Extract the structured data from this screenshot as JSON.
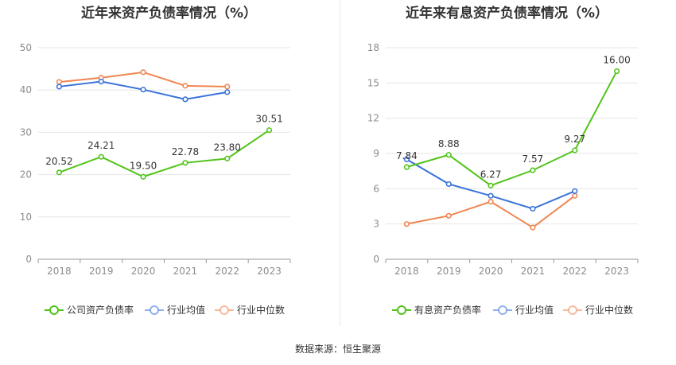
{
  "source_prefix": "数据来源：",
  "source_name": "恒生聚源",
  "colors": {
    "company": "#52c41a",
    "avg": "#3a73d9",
    "median": "#f08552"
  },
  "chart_data": [
    {
      "type": "line",
      "title": "近年来资产负债率情况（%）",
      "categories": [
        "2018",
        "2019",
        "2020",
        "2021",
        "2022",
        "2023"
      ],
      "ylim": [
        0,
        50
      ],
      "yticks": [
        0,
        10,
        20,
        30,
        40,
        50
      ],
      "grid": true,
      "legend_position": "bottom",
      "series": [
        {
          "name": "公司资产负债率",
          "color": "#52c41a",
          "values": [
            20.52,
            24.21,
            19.5,
            22.78,
            23.8,
            30.51
          ],
          "labels": [
            "20.52",
            "24.21",
            "19.50",
            "22.78",
            "23.80",
            "30.51"
          ]
        },
        {
          "name": "行业均值",
          "color": "#3a73d9",
          "values": [
            40.8,
            42.0,
            40.1,
            37.8,
            39.5,
            null
          ]
        },
        {
          "name": "行业中位数",
          "color": "#f08552",
          "values": [
            41.9,
            42.9,
            44.2,
            41.0,
            40.8,
            null
          ]
        }
      ]
    },
    {
      "type": "line",
      "title": "近年来有息资产负债率情况（%）",
      "categories": [
        "2018",
        "2019",
        "2020",
        "2021",
        "2022",
        "2023"
      ],
      "ylim": [
        0,
        18
      ],
      "yticks": [
        0,
        3,
        6,
        9,
        12,
        15,
        18
      ],
      "grid": true,
      "legend_position": "bottom",
      "series": [
        {
          "name": "有息资产负债率",
          "color": "#52c41a",
          "values": [
            7.84,
            8.88,
            6.27,
            7.57,
            9.27,
            16.0
          ],
          "labels": [
            "7.84",
            "8.88",
            "6.27",
            "7.57",
            "9.27",
            "16.00"
          ]
        },
        {
          "name": "行业均值",
          "color": "#3a73d9",
          "values": [
            8.5,
            6.4,
            5.4,
            4.3,
            5.8,
            null
          ]
        },
        {
          "name": "行业中位数",
          "color": "#f08552",
          "values": [
            3.0,
            3.7,
            4.9,
            2.7,
            5.4,
            null
          ]
        }
      ]
    }
  ]
}
